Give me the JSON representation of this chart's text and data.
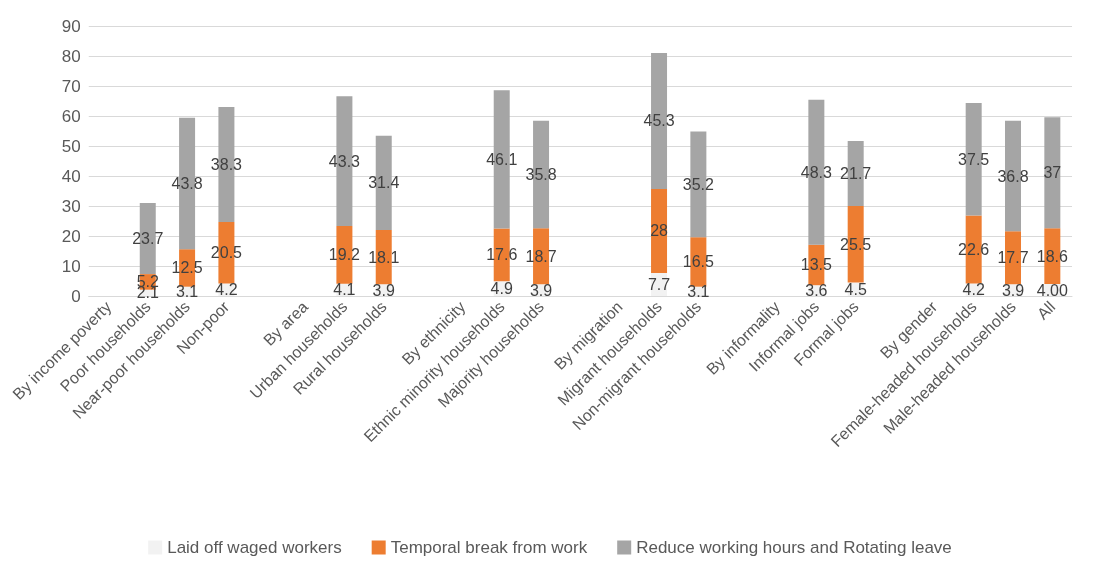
{
  "chart_data": {
    "type": "bar",
    "stacked": true,
    "categories": [
      "By income poverty",
      "Poor households",
      "Near-poor households",
      "Non-poor",
      null,
      "By area",
      "Urban households",
      "Rural households",
      null,
      "By ethnicity",
      "Ethnic minority households",
      "Majority households",
      null,
      "By migration",
      "Migrant households",
      "Non-migrant households",
      null,
      "By informality",
      "Informal jobs",
      "Formal jobs",
      null,
      "By gender",
      "Female-headed households",
      "Male-headed households",
      "All"
    ],
    "series": [
      {
        "name": "Laid off waged workers",
        "color": "#f2f2f2",
        "values": [
          null,
          2.1,
          3.1,
          4.2,
          null,
          null,
          4.1,
          3.9,
          null,
          null,
          4.9,
          3.9,
          null,
          null,
          7.7,
          3.1,
          null,
          null,
          3.6,
          4.5,
          null,
          null,
          4.2,
          3.9,
          4.0
        ],
        "value_labels": [
          null,
          "2.1",
          "3.1",
          "4.2",
          null,
          null,
          "4.1",
          "3.9",
          null,
          null,
          "4.9",
          "3.9",
          null,
          null,
          "7.7",
          "3.1",
          null,
          null,
          "3.6",
          "4.5",
          null,
          null,
          "4.2",
          "3.9",
          "4.00"
        ]
      },
      {
        "name": "Temporal break from work",
        "color": "#ed7d31",
        "values": [
          null,
          5.2,
          12.5,
          20.5,
          null,
          null,
          19.2,
          18.1,
          null,
          null,
          17.6,
          18.7,
          null,
          null,
          28,
          16.5,
          null,
          null,
          13.5,
          25.5,
          null,
          null,
          22.6,
          17.7,
          18.6
        ],
        "value_labels": [
          null,
          "5.2",
          "12.5",
          "20.5",
          null,
          null,
          "19.2",
          "18.1",
          null,
          null,
          "17.6",
          "18.7",
          null,
          null,
          "28",
          "16.5",
          null,
          null,
          "13.5",
          "25.5",
          null,
          null,
          "22.6",
          "17.7",
          "18.6"
        ]
      },
      {
        "name": "Reduce working hours and Rotating leave",
        "color": "#a5a5a5",
        "values": [
          null,
          23.7,
          43.8,
          38.3,
          null,
          null,
          43.3,
          31.4,
          null,
          null,
          46.1,
          35.8,
          null,
          null,
          45.3,
          35.2,
          null,
          null,
          48.3,
          21.7,
          null,
          null,
          37.5,
          36.8,
          37
        ],
        "value_labels": [
          null,
          "23.7",
          "43.8",
          "38.3",
          null,
          null,
          "43.3",
          "31.4",
          null,
          null,
          "46.1",
          "35.8",
          null,
          null,
          "45.3",
          "35.2",
          null,
          null,
          "48.3",
          "21.7",
          null,
          null,
          "37.5",
          "36.8",
          "37"
        ]
      }
    ],
    "ylim": [
      0,
      90
    ],
    "yticks": [
      0,
      10,
      20,
      30,
      40,
      50,
      60,
      70,
      80,
      90
    ],
    "grid": "y",
    "legend": "bottom"
  }
}
